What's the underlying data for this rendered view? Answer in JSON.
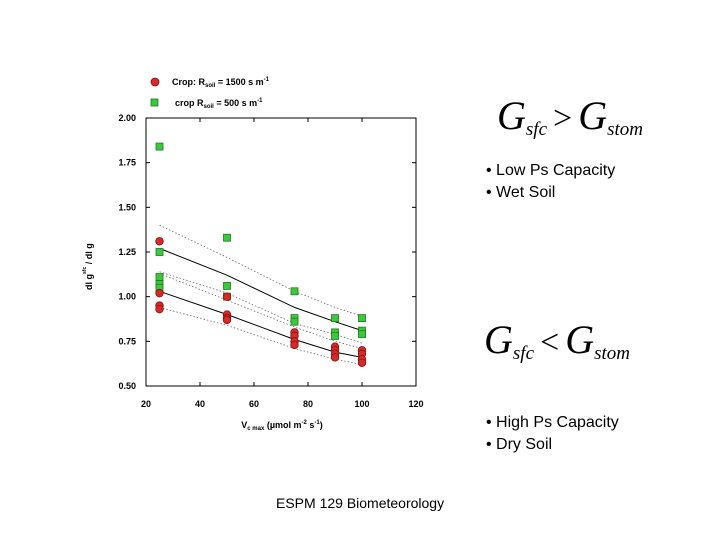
{
  "chart_data": {
    "type": "scatter",
    "xlabel": "V c max (µmol m-2 s-1)",
    "xlabel_parts": {
      "base": "V",
      "sub": "c max",
      "units": "(µmol m",
      "exp1": "-2",
      "mid": " s",
      "exp2": "-1",
      "close": ")"
    },
    "ylabel": "dl gs_sfc / dl gs_stom",
    "ylabel_text": "dl g",
    "ylabel_sub": "sfc",
    "ylabel_rest": "/ dl g",
    "xlim": [
      20,
      120
    ],
    "ylim": [
      0.5,
      2.0
    ],
    "xticks": [
      20,
      40,
      60,
      80,
      100,
      120
    ],
    "yticks": [
      "0.50",
      "0.75",
      "1.00",
      "1.25",
      "1.50",
      "1.75",
      "2.00"
    ],
    "grid": false,
    "legend_position": "top",
    "series": [
      {
        "name": "Crop: Rsoil = 1500 s m-1",
        "legend": {
          "base": "Crop: R",
          "sub": "soil",
          "rest": " = 1500 s m",
          "exp": "-1"
        },
        "marker": "circle",
        "color": "#d42a2a",
        "points": [
          [
            25,
            1.31
          ],
          [
            25,
            1.02
          ],
          [
            25,
            0.95
          ],
          [
            25,
            0.93
          ],
          [
            50,
            1.0
          ],
          [
            50,
            0.9
          ],
          [
            50,
            0.88
          ],
          [
            50,
            0.87
          ],
          [
            75,
            0.8
          ],
          [
            75,
            0.78
          ],
          [
            75,
            0.75
          ],
          [
            75,
            0.73
          ],
          [
            90,
            0.72
          ],
          [
            90,
            0.7
          ],
          [
            90,
            0.68
          ],
          [
            90,
            0.66
          ],
          [
            100,
            0.7
          ],
          [
            100,
            0.68
          ],
          [
            100,
            0.65
          ],
          [
            100,
            0.63
          ]
        ],
        "fit": [
          [
            25,
            1.03
          ],
          [
            50,
            0.9
          ],
          [
            75,
            0.76
          ],
          [
            90,
            0.69
          ],
          [
            100,
            0.66
          ]
        ],
        "ci_upper": [
          [
            25,
            1.13
          ],
          [
            50,
            0.98
          ],
          [
            75,
            0.83
          ],
          [
            90,
            0.75
          ],
          [
            100,
            0.71
          ]
        ],
        "ci_lower": [
          [
            25,
            0.94
          ],
          [
            50,
            0.84
          ],
          [
            75,
            0.71
          ],
          [
            90,
            0.65
          ],
          [
            100,
            0.62
          ]
        ]
      },
      {
        "name": "crop Rsoil = 500 s m-1",
        "legend": {
          "base": "crop R",
          "sub": "soil",
          "rest": " = 500 s m",
          "exp": "-1"
        },
        "marker": "square",
        "color": "#3cc83c",
        "points": [
          [
            25,
            1.84
          ],
          [
            25,
            1.25
          ],
          [
            25,
            1.11
          ],
          [
            25,
            1.07
          ],
          [
            25,
            1.05
          ],
          [
            50,
            1.33
          ],
          [
            50,
            1.06
          ],
          [
            50,
            1.0
          ],
          [
            75,
            1.03
          ],
          [
            75,
            0.88
          ],
          [
            75,
            0.86
          ],
          [
            90,
            0.88
          ],
          [
            90,
            0.8
          ],
          [
            90,
            0.78
          ],
          [
            100,
            0.88
          ],
          [
            100,
            0.81
          ],
          [
            100,
            0.79
          ]
        ],
        "fit": [
          [
            25,
            1.27
          ],
          [
            50,
            1.12
          ],
          [
            75,
            0.94
          ],
          [
            90,
            0.86
          ],
          [
            100,
            0.81
          ]
        ],
        "ci_upper": [
          [
            25,
            1.4
          ],
          [
            50,
            1.22
          ],
          [
            75,
            1.03
          ],
          [
            90,
            0.94
          ],
          [
            100,
            0.89
          ]
        ],
        "ci_lower": [
          [
            25,
            1.14
          ],
          [
            50,
            1.02
          ],
          [
            75,
            0.85
          ],
          [
            90,
            0.79
          ],
          [
            100,
            0.74
          ]
        ]
      }
    ]
  },
  "panels": {
    "top": {
      "lhs": "G",
      "lhs_sub": "sfc",
      "op": ">",
      "rhs": "G",
      "rhs_sub": "stom",
      "bullets": [
        "• Low Ps Capacity",
        "• Wet Soil"
      ]
    },
    "bottom": {
      "lhs": "G",
      "lhs_sub": "sfc",
      "op": "<",
      "rhs": "G",
      "rhs_sub": "stom",
      "bullets": [
        "• High Ps Capacity",
        "• Dry Soil"
      ]
    }
  },
  "footer": "ESPM 129 Biometeorology"
}
